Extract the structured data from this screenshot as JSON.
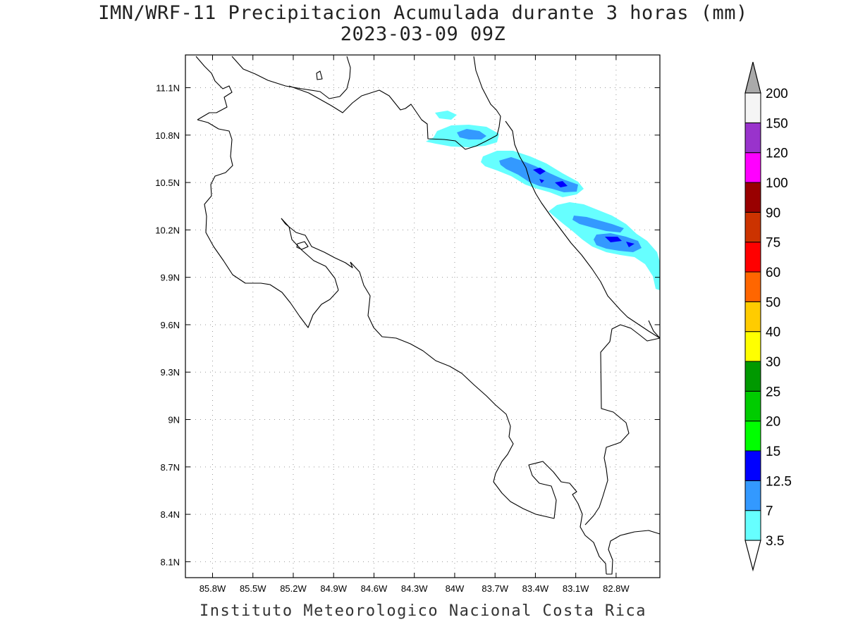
{
  "title": "IMN/WRF-11 Precipitacion Acumulada durante 3 horas (mm)",
  "subtitle": "2023-03-09 09Z",
  "footer": "Instituto Meteorologico Nacional Costa Rica",
  "map": {
    "lon_range": [
      -86.0,
      -82.6
    ],
    "lat_range": [
      8.0,
      11.3
    ],
    "lon_ticks": [
      {
        "value": -85.8,
        "label": "85.8W"
      },
      {
        "value": -85.5,
        "label": "85.5W"
      },
      {
        "value": -85.2,
        "label": "85.2W"
      },
      {
        "value": -84.9,
        "label": "84.9W"
      },
      {
        "value": -84.6,
        "label": "84.6W"
      },
      {
        "value": -84.3,
        "label": "84.3W"
      },
      {
        "value": -84.0,
        "label": "84W"
      },
      {
        "value": -83.7,
        "label": "83.7W"
      },
      {
        "value": -83.4,
        "label": "83.4W"
      },
      {
        "value": -83.1,
        "label": "83.1W"
      },
      {
        "value": -82.8,
        "label": "82.8W"
      }
    ],
    "lat_ticks": [
      {
        "value": 11.1,
        "label": "11.1N"
      },
      {
        "value": 10.8,
        "label": "10.8N"
      },
      {
        "value": 10.5,
        "label": "10.5N"
      },
      {
        "value": 10.2,
        "label": "10.2N"
      },
      {
        "value": 9.9,
        "label": "9.9N"
      },
      {
        "value": 9.6,
        "label": "9.6N"
      },
      {
        "value": 9.3,
        "label": "9.3N"
      },
      {
        "value": 9.0,
        "label": "9N"
      },
      {
        "value": 8.7,
        "label": "8.7N"
      },
      {
        "value": 8.4,
        "label": "8.4N"
      },
      {
        "value": 8.1,
        "label": "8.1N"
      }
    ],
    "grid": "dotted"
  },
  "colorbar": {
    "levels": [
      "3.5",
      "7",
      "12.5",
      "15",
      "20",
      "25",
      "30",
      "40",
      "50",
      "60",
      "75",
      "90",
      "100",
      "120",
      "150",
      "200"
    ],
    "colors": [
      "#66ffff",
      "#3399ff",
      "#0000ff",
      "#00ff00",
      "#00cc00",
      "#009900",
      "#ffff00",
      "#ffcc00",
      "#ff6600",
      "#ff0000",
      "#cc3300",
      "#990000",
      "#ff00ff",
      "#9933cc",
      "#f5f5f5"
    ],
    "over_color": "#aaaaaa",
    "under_color": "#ffffff"
  },
  "colors": {
    "light_rain": "#66ffff",
    "moderate_rain": "#3399ff",
    "heavy_rain": "#0000ff",
    "coastline": "#000000"
  }
}
